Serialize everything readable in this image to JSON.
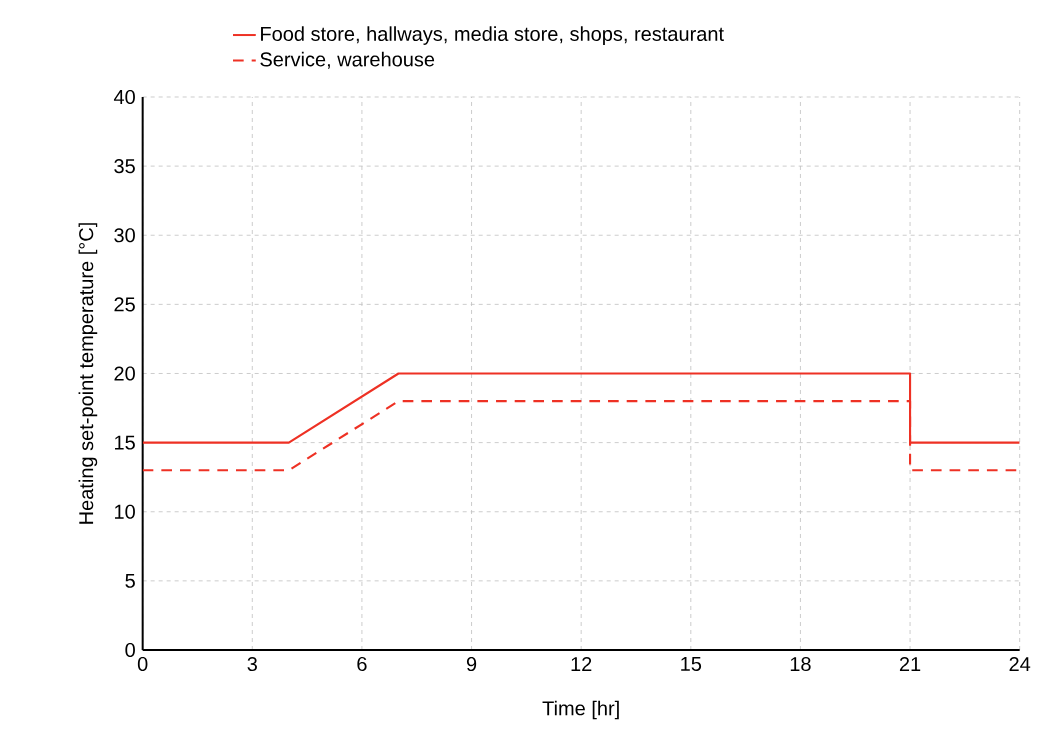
{
  "chart_data": {
    "type": "line",
    "xlabel": "Time [hr]",
    "ylabel": "Heating set-point temperature [°C]",
    "series": [
      {
        "name": "Food store, hallways, media store, shops, restaurant",
        "color": "#ee3124",
        "line_style": "solid",
        "x": [
          0,
          4,
          7,
          21,
          21,
          24
        ],
        "values": [
          15,
          15,
          20,
          20,
          15,
          15
        ]
      },
      {
        "name": "Service, warehouse",
        "color": "#ee3124",
        "line_style": "dashed",
        "x": [
          0,
          4,
          7,
          21,
          21,
          24
        ],
        "values": [
          13,
          13,
          18,
          18,
          13,
          13
        ]
      }
    ],
    "xlim": [
      0,
      24
    ],
    "ylim": [
      0,
      40
    ],
    "xticks": [
      0,
      3,
      6,
      9,
      12,
      15,
      18,
      21,
      24
    ],
    "yticks": [
      0,
      5,
      10,
      15,
      20,
      25,
      30,
      35,
      40
    ],
    "grid": true,
    "legend": "top"
  }
}
